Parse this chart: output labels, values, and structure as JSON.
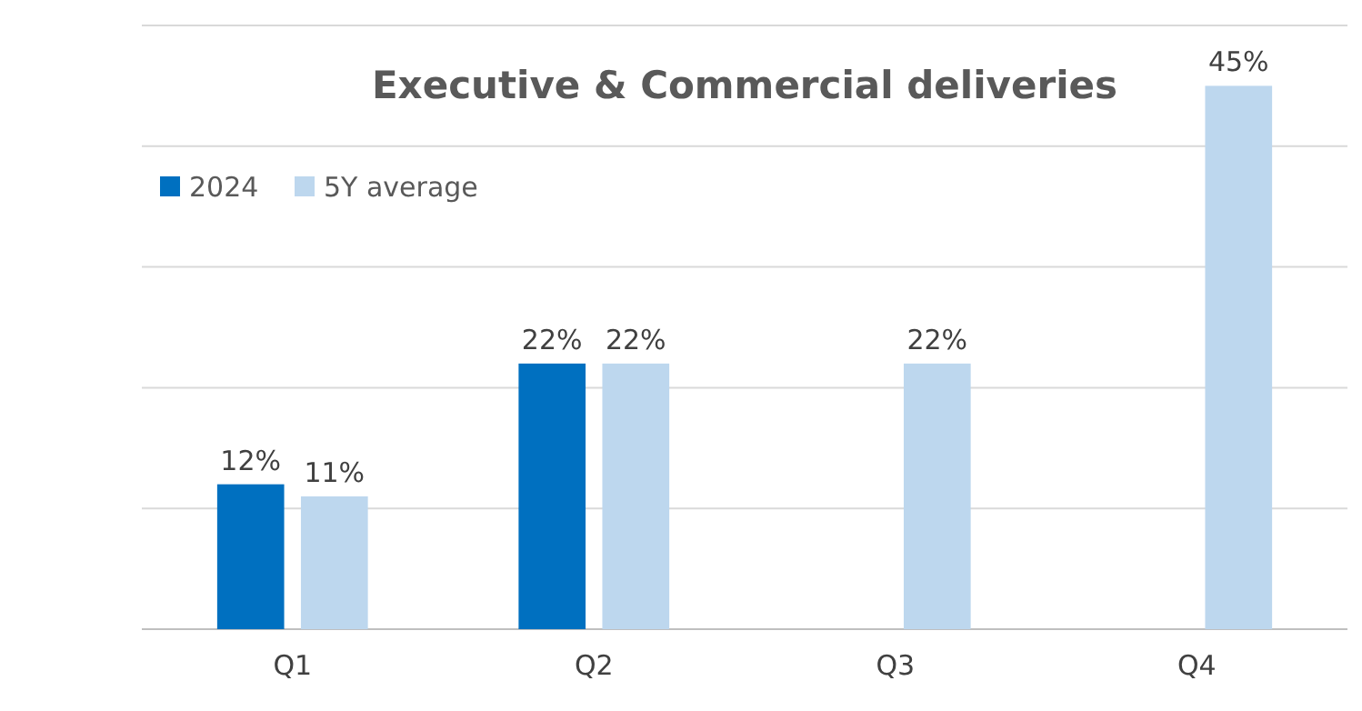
{
  "chart_data": {
    "type": "bar",
    "title": "Executive & Commercial deliveries",
    "categories": [
      "Q1",
      "Q2",
      "Q3",
      "Q4"
    ],
    "series": [
      {
        "name": "2024",
        "color": "#0070c0",
        "values": [
          12,
          22,
          null,
          null
        ],
        "value_labels": [
          "12%",
          "22%",
          null,
          null
        ]
      },
      {
        "name": "5Y average",
        "color": "#bdd7ee",
        "values": [
          11,
          22,
          22,
          45
        ],
        "value_labels": [
          "11%",
          "22%",
          "22%",
          "45%"
        ]
      }
    ],
    "ylim": [
      0,
      50
    ],
    "yticks": [
      {
        "value": 0,
        "label": null
      },
      {
        "value": 10,
        "label": null
      },
      {
        "value": 20,
        "label": null
      },
      {
        "value": 30,
        "label": null
      },
      {
        "value": 40,
        "label": null
      },
      {
        "value": 50,
        "label": null
      }
    ],
    "tick_labels": "x",
    "grid": "y",
    "legend": "top left"
  }
}
